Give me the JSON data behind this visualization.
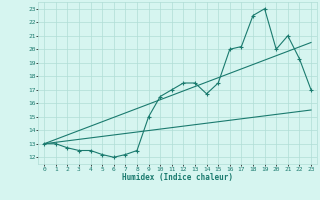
{
  "line1_x": [
    0,
    1,
    2,
    3,
    4,
    5,
    6,
    7,
    8,
    9,
    10,
    11,
    12,
    13,
    14,
    15,
    16,
    17,
    18,
    19,
    20,
    21,
    22,
    23
  ],
  "line1_y": [
    13,
    13,
    12.7,
    12.5,
    12.5,
    12.2,
    12.0,
    12.2,
    12.5,
    15.0,
    16.5,
    17.0,
    17.5,
    17.5,
    16.7,
    17.5,
    20.0,
    20.2,
    22.5,
    23.0,
    20.0,
    21.0,
    19.3,
    17.0
  ],
  "line2_x": [
    0,
    23
  ],
  "line2_y": [
    13,
    15.5
  ],
  "line3_x": [
    0,
    23
  ],
  "line3_y": [
    13,
    20.5
  ],
  "line_color": "#1a7a6e",
  "bg_color": "#d6f5f0",
  "grid_color": "#b0ddd6",
  "xlabel": "Humidex (Indice chaleur)",
  "xlim": [
    -0.5,
    23.5
  ],
  "ylim": [
    11.5,
    23.5
  ],
  "yticks": [
    12,
    13,
    14,
    15,
    16,
    17,
    18,
    19,
    20,
    21,
    22,
    23
  ],
  "xticks": [
    0,
    1,
    2,
    3,
    4,
    5,
    6,
    7,
    8,
    9,
    10,
    11,
    12,
    13,
    14,
    15,
    16,
    17,
    18,
    19,
    20,
    21,
    22,
    23
  ]
}
